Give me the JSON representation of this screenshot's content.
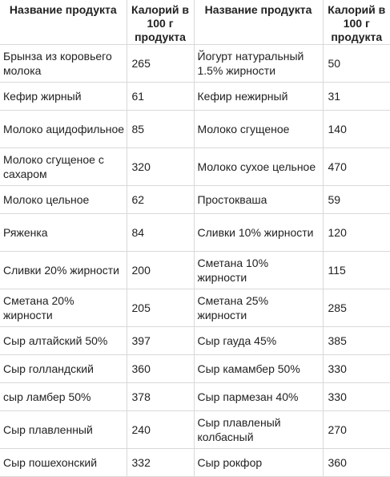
{
  "table": {
    "headers": [
      "Название продукта",
      "Калорий в 100 г продукта",
      "Название продукта",
      "Калорий в 100 г продукта"
    ],
    "rows": [
      [
        "Брынза из коровьего молока",
        "265",
        "Йогурт натуральный 1.5% жирности",
        "50"
      ],
      [
        "Кефир жирный",
        "61",
        "Кефир нежирный",
        "31"
      ],
      [
        "Молоко ацидофильное",
        "85",
        "Молоко сгущеное",
        "140"
      ],
      [
        "Молоко сгущеное с сахаром",
        "320",
        "Молоко сухое цельное",
        "470"
      ],
      [
        "Молоко цельное",
        "62",
        "Простокваша",
        "59"
      ],
      [
        "Ряженка",
        "84",
        "Сливки 10% жирности",
        "120"
      ],
      [
        "Сливки 20% жирности",
        "200",
        "Сметана 10% жирности",
        "115"
      ],
      [
        "Сметана 20% жирности",
        "205",
        "Сметана 25% жирности",
        "285"
      ],
      [
        "Сыр алтайский 50%",
        "397",
        "Сыр гауда 45%",
        "385"
      ],
      [
        "Сыр голландский",
        "360",
        "Сыр камамбер 50%",
        "330"
      ],
      [
        "сыр ламбер 50%",
        "378",
        "Сыр пармезан 40%",
        "330"
      ],
      [
        "Сыр плавленный",
        "240",
        "Сыр плавленый колбасный",
        "270"
      ],
      [
        "Сыр пошехонский",
        "332",
        "Сыр рокфор",
        "360"
      ]
    ]
  }
}
